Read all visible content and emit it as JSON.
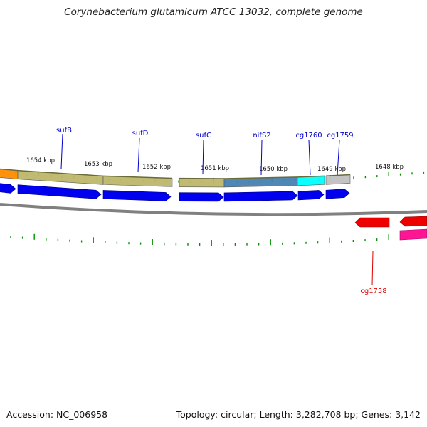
{
  "title": "Corynebacterium glutamicum ATCC 13032, complete genome",
  "ruler": {
    "labels": [
      "1654 kbp",
      "1653 kbp",
      "1652 kbp",
      "1651 kbp",
      "1650 kbp",
      "1649 kbp",
      "1648 kbp"
    ]
  },
  "genes": [
    {
      "name": "sufB",
      "color": "#0000cc"
    },
    {
      "name": "sufD",
      "color": "#0000cc"
    },
    {
      "name": "sufC",
      "color": "#0000cc"
    },
    {
      "name": "nifS2",
      "color": "#0000cc"
    },
    {
      "name": "cg1760",
      "color": "#0000cc"
    },
    {
      "name": "cg1759",
      "color": "#0000cc"
    },
    {
      "name": "cg1758",
      "color": "#dd0000"
    }
  ],
  "colors": {
    "backbone": "#808080",
    "forward_cds": "#0000ee",
    "reverse_cds": "#ee0000",
    "ticks": "#009000",
    "cog_orange": "#ff8c00",
    "cog_khaki": "#bdb76b",
    "cog_steelblue": "#4682b4",
    "cog_cyan": "#00ffff",
    "cog_silver": "#c0c0c0",
    "cog_magenta": "#ff1493"
  },
  "footer": {
    "accession": "Accession: NC_006958",
    "summary": "Topology: circular; Length: 3,282,708 bp; Genes: 3,142"
  }
}
